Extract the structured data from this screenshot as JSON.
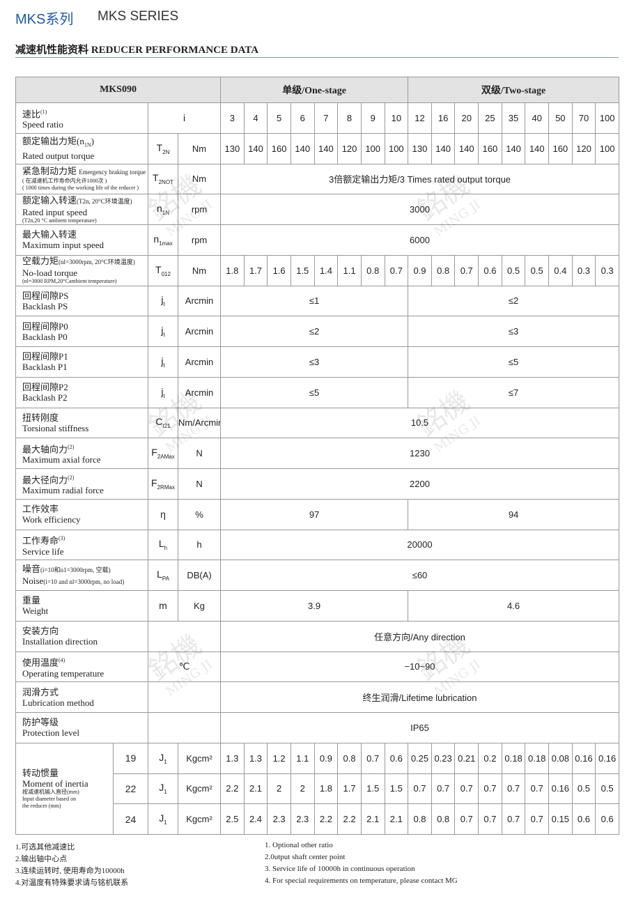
{
  "header": {
    "title_cn": "MKS系列",
    "title_en": "MKS SERIES",
    "section_cn": "减速机性能资料",
    "section_en": "REDUCER PERFORMANCE DATA"
  },
  "watermark": {
    "cn": "銘機",
    "en": "MING JI"
  },
  "table": {
    "model": "MKS090",
    "one_stage": "单级/One-stage",
    "two_stage": "双级/Two-stage",
    "rows": [
      {
        "name": [
          [
            {
              "t": "速比"
            },
            {
              "t": "(1)",
              "s": "sup"
            }
          ],
          [
            {
              "t": "Speed ratio"
            }
          ]
        ],
        "symbol": {
          "t": "i"
        },
        "values": [
          3,
          4,
          5,
          6,
          7,
          8,
          9,
          10,
          12,
          16,
          20,
          25,
          35,
          40,
          50,
          70,
          100
        ]
      },
      {
        "name": [
          [
            {
              "t": "额定输出力矩(n"
            },
            {
              "t": "1N",
              "s": "sub"
            },
            {
              "t": ")"
            }
          ],
          [
            {
              "t": "Rated output torque"
            }
          ]
        ],
        "symbol": {
          "t": "T",
          "sub": "2N"
        },
        "unit": "Nm",
        "values": [
          130,
          140,
          160,
          140,
          140,
          120,
          100,
          100,
          130,
          140,
          140,
          160,
          140,
          140,
          160,
          120,
          100
        ]
      },
      {
        "name": [
          [
            {
              "t": "紧急制动力矩 "
            },
            {
              "t": "Emergency braking torque",
              "s": "small"
            }
          ],
          [
            {
              "t": "( 在减速机工作寿命内允许1000次 )",
              "s": "tiny"
            }
          ],
          [
            {
              "t": "( 1000 times during the working life of the reducer )",
              "s": "tiny"
            }
          ]
        ],
        "symbol": {
          "t": "T",
          "sub": "2NOT"
        },
        "unit": "Nm",
        "all": "3倍额定输出力矩/3 Times rated output torque"
      },
      {
        "name": [
          [
            {
              "t": "额定输入转速"
            },
            {
              "t": "(T2n, 20°C环境温度)",
              "s": "small"
            }
          ],
          [
            {
              "t": "Rated input speed"
            }
          ],
          [
            {
              "t": "(T2n,20 °C ambient temperature)",
              "s": "tiny"
            }
          ]
        ],
        "symbol": {
          "t": "n",
          "sub": "1N"
        },
        "unit": "rpm",
        "all": 3000
      },
      {
        "name": [
          [
            {
              "t": "最大输入转速"
            }
          ],
          [
            {
              "t": "Maximum input speed"
            }
          ]
        ],
        "symbol": {
          "t": "n",
          "sub": "1max"
        },
        "unit": "rpm",
        "all": 6000
      },
      {
        "name": [
          [
            {
              "t": "空载力矩"
            },
            {
              "t": "(nl=3000rpm, 20°C环境温度)",
              "s": "small"
            }
          ],
          [
            {
              "t": "No-load torque"
            }
          ],
          [
            {
              "t": "(nl=3000 RPM,20°Cambient temperature)",
              "s": "tiny"
            }
          ]
        ],
        "symbol": {
          "t": "T",
          "sub": "012"
        },
        "unit": "Nm",
        "values": [
          1.8,
          1.7,
          1.6,
          1.5,
          1.4,
          1.1,
          0.8,
          0.7,
          0.9,
          0.8,
          0.7,
          0.6,
          0.5,
          0.5,
          0.4,
          0.3,
          0.3
        ]
      },
      {
        "name": [
          [
            {
              "t": "回程间隙PS"
            }
          ],
          [
            {
              "t": "Backlash PS"
            }
          ]
        ],
        "symbol": {
          "t": "j",
          "sub": "t"
        },
        "unit": "Arcmin",
        "one_stage": "≤1",
        "two_stage": "≤2"
      },
      {
        "name": [
          [
            {
              "t": "回程间隙P0"
            }
          ],
          [
            {
              "t": "Backlash P0"
            }
          ]
        ],
        "symbol": {
          "t": "j",
          "sub": "t"
        },
        "unit": "Arcmin",
        "one_stage": "≤2",
        "two_stage": "≤3"
      },
      {
        "name": [
          [
            {
              "t": "回程间隙P1"
            }
          ],
          [
            {
              "t": "Backlash P1"
            }
          ]
        ],
        "symbol": {
          "t": "j",
          "sub": "t"
        },
        "unit": "Arcmin",
        "one_stage": "≤3",
        "two_stage": "≤5"
      },
      {
        "name": [
          [
            {
              "t": "回程间隙P2"
            }
          ],
          [
            {
              "t": "Backlash P2"
            }
          ]
        ],
        "symbol": {
          "t": "j",
          "sub": "t"
        },
        "unit": "Arcmin",
        "one_stage": "≤5",
        "two_stage": "≤7"
      },
      {
        "name": [
          [
            {
              "t": "扭转刚度"
            }
          ],
          [
            {
              "t": "Torsional stiffness"
            }
          ]
        ],
        "symbol": {
          "t": "C",
          "sub": "t21"
        },
        "unit": "Nm/Arcmin",
        "all": 10.5
      },
      {
        "name": [
          [
            {
              "t": "最大轴向力"
            },
            {
              "t": "(2)",
              "s": "sup"
            }
          ],
          [
            {
              "t": "Maximum axial force"
            }
          ]
        ],
        "symbol": {
          "t": "F",
          "sub": "2AMax"
        },
        "unit": "N",
        "all": 1230
      },
      {
        "name": [
          [
            {
              "t": "最大径向力"
            },
            {
              "t": "(2)",
              "s": "sup"
            }
          ],
          [
            {
              "t": "Maximum radial force"
            }
          ]
        ],
        "symbol": {
          "t": "F",
          "sub": "2RMax"
        },
        "unit": "N",
        "all": 2200
      },
      {
        "name": [
          [
            {
              "t": "工作效率"
            }
          ],
          [
            {
              "t": "Work efficiency"
            }
          ]
        ],
        "symbol": {
          "t": "η"
        },
        "unit": "%",
        "one_stage": 97,
        "two_stage": 94
      },
      {
        "name": [
          [
            {
              "t": "工作寿命"
            },
            {
              "t": "(3)",
              "s": "sup"
            }
          ],
          [
            {
              "t": "Service life"
            }
          ]
        ],
        "symbol": {
          "t": "L",
          "sub": "h"
        },
        "unit": "h",
        "all": 20000
      },
      {
        "name": [
          [
            {
              "t": "噪音"
            },
            {
              "t": "(i=10和n1=3000rpm, 空载)",
              "s": "small"
            }
          ],
          [
            {
              "t": "Noise"
            },
            {
              "t": "(i=10 and nl=3000rpm, no load)",
              "s": "small"
            }
          ]
        ],
        "symbol": {
          "t": "L",
          "sub": "PA"
        },
        "unit": "DB(A)",
        "all": "≤60"
      },
      {
        "name": [
          [
            {
              "t": "重量"
            }
          ],
          [
            {
              "t": "Weight"
            }
          ]
        ],
        "symbol": {
          "t": "m"
        },
        "unit": "Kg",
        "one_stage": 3.9,
        "two_stage": 4.6
      },
      {
        "name": [
          [
            {
              "t": "安装方向"
            }
          ],
          [
            {
              "t": "Installation direction"
            }
          ]
        ],
        "all": "任意方向/Any direction"
      },
      {
        "name": [
          [
            {
              "t": "使用温度"
            },
            {
              "t": "(4)",
              "s": "sup"
            }
          ],
          [
            {
              "t": "Operating temperature"
            }
          ]
        ],
        "symbol": {
          "t": "℃"
        },
        "all": "−10~90"
      },
      {
        "name": [
          [
            {
              "t": "润滑方式"
            }
          ],
          [
            {
              "t": "Lubrication method"
            }
          ]
        ],
        "all": "终生润滑/Lifetime lubrication"
      },
      {
        "name": [
          [
            {
              "t": "防护等级"
            }
          ],
          [
            {
              "t": "Protection level"
            }
          ]
        ],
        "all": "IP65"
      }
    ],
    "inertia": {
      "name": [
        [
          {
            "t": "转动惯量"
          }
        ],
        [
          {
            "t": "Moment of inertia"
          }
        ],
        [
          {
            "t": "按减速机输入直径(mm)",
            "s": "tiny"
          }
        ],
        [
          {
            "t": "Input diameter based on",
            "s": "tiny"
          }
        ],
        [
          {
            "t": "the reducer (mm)",
            "s": "tiny"
          }
        ]
      ],
      "rows": [
        {
          "diameter": 19,
          "symbol": {
            "t": "J",
            "sub": "1"
          },
          "unit": "Kgcm²",
          "values": [
            1.3,
            1.3,
            1.2,
            1.1,
            0.9,
            0.8,
            0.7,
            0.6,
            0.25,
            0.23,
            0.21,
            0.2,
            0.18,
            0.18,
            0.08,
            0.16,
            0.16
          ]
        },
        {
          "diameter": 22,
          "symbol": {
            "t": "J",
            "sub": "1"
          },
          "unit": "Kgcm²",
          "values": [
            2.2,
            2.1,
            2,
            2,
            1.8,
            1.7,
            1.5,
            1.5,
            0.7,
            0.7,
            0.7,
            0.7,
            0.7,
            0.7,
            0.16,
            0.5,
            0.5
          ]
        },
        {
          "diameter": 24,
          "symbol": {
            "t": "J",
            "sub": "1"
          },
          "unit": "Kgcm²",
          "values": [
            2.5,
            2.4,
            2.3,
            2.3,
            2.2,
            2.2,
            2.1,
            2.1,
            0.8,
            0.8,
            0.7,
            0.7,
            0.7,
            0.7,
            0.15,
            0.6,
            0.6
          ]
        }
      ]
    }
  },
  "notes_cn": [
    "1.可选其他减速比",
    "2.输出轴中心点",
    "3.连续运转时, 使用寿命为10000h",
    "4.对温度有特殊要求请与铭机联系"
  ],
  "notes_en": [
    "1. Optional other ratio",
    "2.0utput shaft center point",
    "3. Service life of 10000h in continuous operation",
    "4. For special requirements on temperature, please contact MG"
  ]
}
